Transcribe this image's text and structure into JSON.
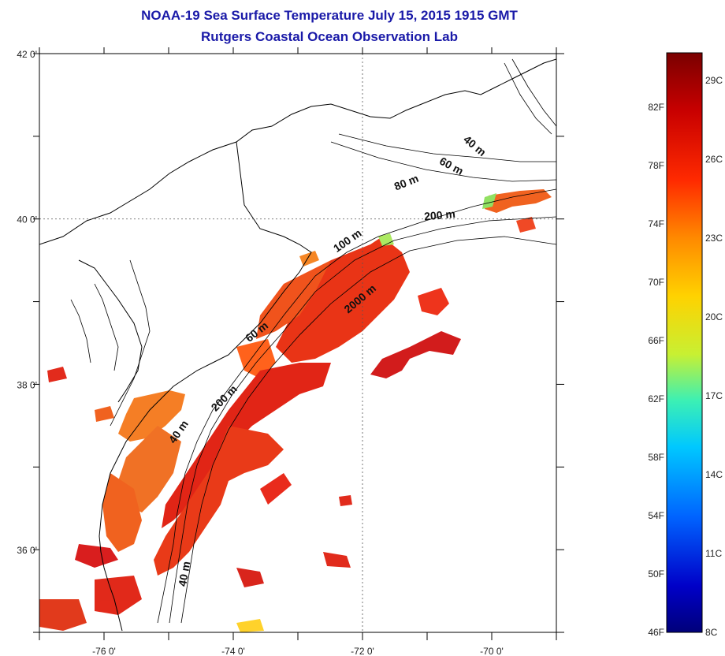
{
  "header": {
    "title_line1": "NOAA-19 Sea Surface Temperature July 15, 2015 1915 GMT",
    "title_line2": "Rutgers Coastal Ocean Observation Lab"
  },
  "map": {
    "lon_range": [
      -77,
      -69
    ],
    "lat_range": [
      35,
      42
    ],
    "lon_ticks": [
      {
        "value": -76,
        "label": "-76 0'"
      },
      {
        "value": -74,
        "label": "-74 0'"
      },
      {
        "value": -72,
        "label": "-72 0'"
      },
      {
        "value": -70,
        "label": "-70 0'"
      }
    ],
    "lat_ticks": [
      {
        "value": 42,
        "label": "42 0'"
      },
      {
        "value": 40,
        "label": "40 0'"
      },
      {
        "value": 38,
        "label": "38 0'"
      },
      {
        "value": 36,
        "label": "36 0'"
      }
    ],
    "gridlines": {
      "lon": -72,
      "lat": 40
    },
    "isobath_labels": [
      {
        "text": "40 m",
        "lon": -70.3,
        "lat": 40.85,
        "rotate": 40
      },
      {
        "text": "60 m",
        "lon": -70.65,
        "lat": 40.6,
        "rotate": 28
      },
      {
        "text": "80 m",
        "lon": -71.3,
        "lat": 40.4,
        "rotate": -22
      },
      {
        "text": "200 m",
        "lon": -70.8,
        "lat": 40.0,
        "rotate": -5
      },
      {
        "text": "100 m",
        "lon": -72.2,
        "lat": 39.7,
        "rotate": -35
      },
      {
        "text": "2000 m",
        "lon": -72.0,
        "lat": 39.0,
        "rotate": -40
      },
      {
        "text": "60 m",
        "lon": -73.6,
        "lat": 38.6,
        "rotate": -38
      },
      {
        "text": "200 m",
        "lon": -74.1,
        "lat": 37.8,
        "rotate": -45
      },
      {
        "text": "40 m",
        "lon": -74.8,
        "lat": 37.4,
        "rotate": -55
      },
      {
        "text": "40 m",
        "lon": -74.7,
        "lat": 35.7,
        "rotate": -80
      }
    ]
  },
  "colorbar": {
    "fahrenheit": [
      "82F",
      "78F",
      "74F",
      "70F",
      "66F",
      "62F",
      "58F",
      "54F",
      "50F",
      "46F"
    ],
    "celsius": [
      "29C",
      "26C",
      "23C",
      "20C",
      "17C",
      "14C",
      "11C",
      "8C"
    ],
    "colors": [
      "#7a0000",
      "#c80000",
      "#ff2a00",
      "#ff8a00",
      "#ffd200",
      "#c8f032",
      "#3cf0b4",
      "#00c8ff",
      "#0064ff",
      "#0000c8",
      "#00007a"
    ]
  }
}
